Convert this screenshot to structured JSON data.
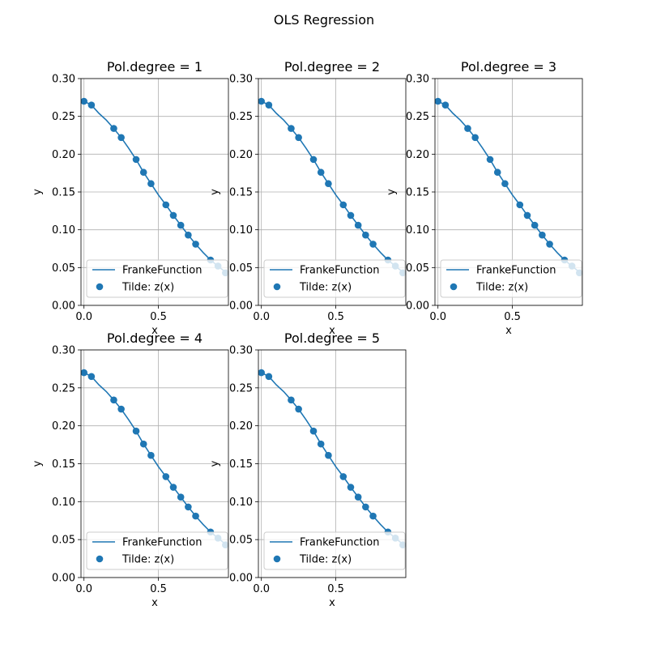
{
  "figure": {
    "title": "OLS Regression"
  },
  "colors": {
    "series": "#1f77b4",
    "grid": "#b0b0b0",
    "axes": "#000000"
  },
  "chart_data": [
    {
      "type": "line",
      "title": "Pol.degree = 1",
      "xlabel": "x",
      "ylabel": "y",
      "xlim": [
        -0.02,
        0.97
      ],
      "ylim": [
        0.0,
        0.3
      ],
      "xticks": [
        0.0,
        0.5
      ],
      "xtick_labels": [
        "0.0",
        "0.5"
      ],
      "yticks": [
        0.0,
        0.05,
        0.1,
        0.15,
        0.2,
        0.25,
        0.3
      ],
      "ytick_labels": [
        "0.00",
        "0.05",
        "0.10",
        "0.15",
        "0.20",
        "0.25",
        "0.30"
      ],
      "grid": true,
      "legend_position": "lower left",
      "series": [
        {
          "name": "FrankeFunction",
          "kind": "line",
          "x": [
            0.0,
            0.05,
            0.1,
            0.15,
            0.2,
            0.25,
            0.3,
            0.35,
            0.4,
            0.45,
            0.5,
            0.55,
            0.6,
            0.65,
            0.7,
            0.75,
            0.8,
            0.85,
            0.9,
            0.95
          ],
          "y": [
            0.27,
            0.265,
            0.254,
            0.245,
            0.234,
            0.222,
            0.208,
            0.193,
            0.176,
            0.161,
            0.146,
            0.133,
            0.119,
            0.106,
            0.093,
            0.081,
            0.07,
            0.06,
            0.052,
            0.044
          ]
        },
        {
          "name": "Tilde: z(x)",
          "kind": "scatter",
          "x": [
            0.0,
            0.05,
            0.2,
            0.25,
            0.35,
            0.4,
            0.45,
            0.55,
            0.6,
            0.65,
            0.7,
            0.75,
            0.85,
            0.9,
            0.95
          ],
          "y": [
            0.27,
            0.265,
            0.234,
            0.222,
            0.193,
            0.176,
            0.161,
            0.133,
            0.119,
            0.106,
            0.093,
            0.081,
            0.06,
            0.052,
            0.043
          ]
        }
      ]
    },
    {
      "type": "line",
      "title": "Pol.degree = 2",
      "xlabel": "x",
      "ylabel": "y",
      "xlim": [
        -0.02,
        0.97
      ],
      "ylim": [
        0.0,
        0.3
      ],
      "xticks": [
        0.0,
        0.5
      ],
      "xtick_labels": [
        "0.0",
        "0.5"
      ],
      "yticks": [
        0.0,
        0.05,
        0.1,
        0.15,
        0.2,
        0.25,
        0.3
      ],
      "ytick_labels": [
        "0.00",
        "0.05",
        "0.10",
        "0.15",
        "0.20",
        "0.25",
        "0.30"
      ],
      "grid": true,
      "legend_position": "lower left",
      "series": [
        {
          "name": "FrankeFunction",
          "kind": "line",
          "x": [
            0.0,
            0.05,
            0.1,
            0.15,
            0.2,
            0.25,
            0.3,
            0.35,
            0.4,
            0.45,
            0.5,
            0.55,
            0.6,
            0.65,
            0.7,
            0.75,
            0.8,
            0.85,
            0.9,
            0.95
          ],
          "y": [
            0.27,
            0.265,
            0.254,
            0.245,
            0.234,
            0.222,
            0.208,
            0.193,
            0.176,
            0.161,
            0.146,
            0.133,
            0.119,
            0.106,
            0.093,
            0.081,
            0.07,
            0.06,
            0.052,
            0.044
          ]
        },
        {
          "name": "Tilde: z(x)",
          "kind": "scatter",
          "x": [
            0.0,
            0.05,
            0.2,
            0.25,
            0.35,
            0.4,
            0.45,
            0.55,
            0.6,
            0.65,
            0.7,
            0.75,
            0.85,
            0.9,
            0.95
          ],
          "y": [
            0.27,
            0.265,
            0.234,
            0.222,
            0.193,
            0.176,
            0.161,
            0.133,
            0.119,
            0.106,
            0.093,
            0.081,
            0.06,
            0.052,
            0.043
          ]
        }
      ]
    },
    {
      "type": "line",
      "title": "Pol.degree = 3",
      "xlabel": "x",
      "ylabel": "y",
      "xlim": [
        -0.02,
        0.97
      ],
      "ylim": [
        0.0,
        0.3
      ],
      "xticks": [
        0.0,
        0.5
      ],
      "xtick_labels": [
        "0.0",
        "0.5"
      ],
      "yticks": [
        0.0,
        0.05,
        0.1,
        0.15,
        0.2,
        0.25,
        0.3
      ],
      "ytick_labels": [
        "0.00",
        "0.05",
        "0.10",
        "0.15",
        "0.20",
        "0.25",
        "0.30"
      ],
      "grid": true,
      "legend_position": "lower left",
      "series": [
        {
          "name": "FrankeFunction",
          "kind": "line",
          "x": [
            0.0,
            0.05,
            0.1,
            0.15,
            0.2,
            0.25,
            0.3,
            0.35,
            0.4,
            0.45,
            0.5,
            0.55,
            0.6,
            0.65,
            0.7,
            0.75,
            0.8,
            0.85,
            0.9,
            0.95
          ],
          "y": [
            0.27,
            0.265,
            0.254,
            0.245,
            0.234,
            0.222,
            0.208,
            0.193,
            0.176,
            0.161,
            0.146,
            0.133,
            0.119,
            0.106,
            0.093,
            0.081,
            0.07,
            0.06,
            0.052,
            0.044
          ]
        },
        {
          "name": "Tilde: z(x)",
          "kind": "scatter",
          "x": [
            0.0,
            0.05,
            0.2,
            0.25,
            0.35,
            0.4,
            0.45,
            0.55,
            0.6,
            0.65,
            0.7,
            0.75,
            0.85,
            0.9,
            0.95
          ],
          "y": [
            0.27,
            0.265,
            0.234,
            0.222,
            0.193,
            0.176,
            0.161,
            0.133,
            0.119,
            0.106,
            0.093,
            0.081,
            0.06,
            0.052,
            0.043
          ]
        }
      ]
    },
    {
      "type": "line",
      "title": "Pol.degree = 4",
      "xlabel": "x",
      "ylabel": "y",
      "xlim": [
        -0.02,
        0.97
      ],
      "ylim": [
        0.0,
        0.3
      ],
      "xticks": [
        0.0,
        0.5
      ],
      "xtick_labels": [
        "0.0",
        "0.5"
      ],
      "yticks": [
        0.0,
        0.05,
        0.1,
        0.15,
        0.2,
        0.25,
        0.3
      ],
      "ytick_labels": [
        "0.00",
        "0.05",
        "0.10",
        "0.15",
        "0.20",
        "0.25",
        "0.30"
      ],
      "grid": true,
      "legend_position": "lower left",
      "series": [
        {
          "name": "FrankeFunction",
          "kind": "line",
          "x": [
            0.0,
            0.05,
            0.1,
            0.15,
            0.2,
            0.25,
            0.3,
            0.35,
            0.4,
            0.45,
            0.5,
            0.55,
            0.6,
            0.65,
            0.7,
            0.75,
            0.8,
            0.85,
            0.9,
            0.95
          ],
          "y": [
            0.27,
            0.265,
            0.254,
            0.245,
            0.234,
            0.222,
            0.208,
            0.193,
            0.176,
            0.161,
            0.146,
            0.133,
            0.119,
            0.106,
            0.093,
            0.081,
            0.07,
            0.06,
            0.052,
            0.044
          ]
        },
        {
          "name": "Tilde: z(x)",
          "kind": "scatter",
          "x": [
            0.0,
            0.05,
            0.2,
            0.25,
            0.35,
            0.4,
            0.45,
            0.55,
            0.6,
            0.65,
            0.7,
            0.75,
            0.85,
            0.9,
            0.95
          ],
          "y": [
            0.27,
            0.265,
            0.234,
            0.222,
            0.193,
            0.176,
            0.161,
            0.133,
            0.119,
            0.106,
            0.093,
            0.081,
            0.06,
            0.052,
            0.043
          ]
        }
      ]
    },
    {
      "type": "line",
      "title": "Pol.degree = 5",
      "xlabel": "x",
      "ylabel": "y",
      "xlim": [
        -0.02,
        0.97
      ],
      "ylim": [
        0.0,
        0.3
      ],
      "xticks": [
        0.0,
        0.5
      ],
      "xtick_labels": [
        "0.0",
        "0.5"
      ],
      "yticks": [
        0.0,
        0.05,
        0.1,
        0.15,
        0.2,
        0.25,
        0.3
      ],
      "ytick_labels": [
        "0.00",
        "0.05",
        "0.10",
        "0.15",
        "0.20",
        "0.25",
        "0.30"
      ],
      "grid": true,
      "legend_position": "lower left",
      "series": [
        {
          "name": "FrankeFunction",
          "kind": "line",
          "x": [
            0.0,
            0.05,
            0.1,
            0.15,
            0.2,
            0.25,
            0.3,
            0.35,
            0.4,
            0.45,
            0.5,
            0.55,
            0.6,
            0.65,
            0.7,
            0.75,
            0.8,
            0.85,
            0.9,
            0.95
          ],
          "y": [
            0.27,
            0.265,
            0.254,
            0.245,
            0.234,
            0.222,
            0.208,
            0.193,
            0.176,
            0.161,
            0.146,
            0.133,
            0.119,
            0.106,
            0.093,
            0.081,
            0.07,
            0.06,
            0.052,
            0.044
          ]
        },
        {
          "name": "Tilde: z(x)",
          "kind": "scatter",
          "x": [
            0.0,
            0.05,
            0.2,
            0.25,
            0.35,
            0.4,
            0.45,
            0.55,
            0.6,
            0.65,
            0.7,
            0.75,
            0.85,
            0.9,
            0.95
          ],
          "y": [
            0.27,
            0.265,
            0.234,
            0.222,
            0.193,
            0.176,
            0.161,
            0.133,
            0.119,
            0.106,
            0.093,
            0.081,
            0.06,
            0.052,
            0.043
          ]
        }
      ]
    }
  ]
}
